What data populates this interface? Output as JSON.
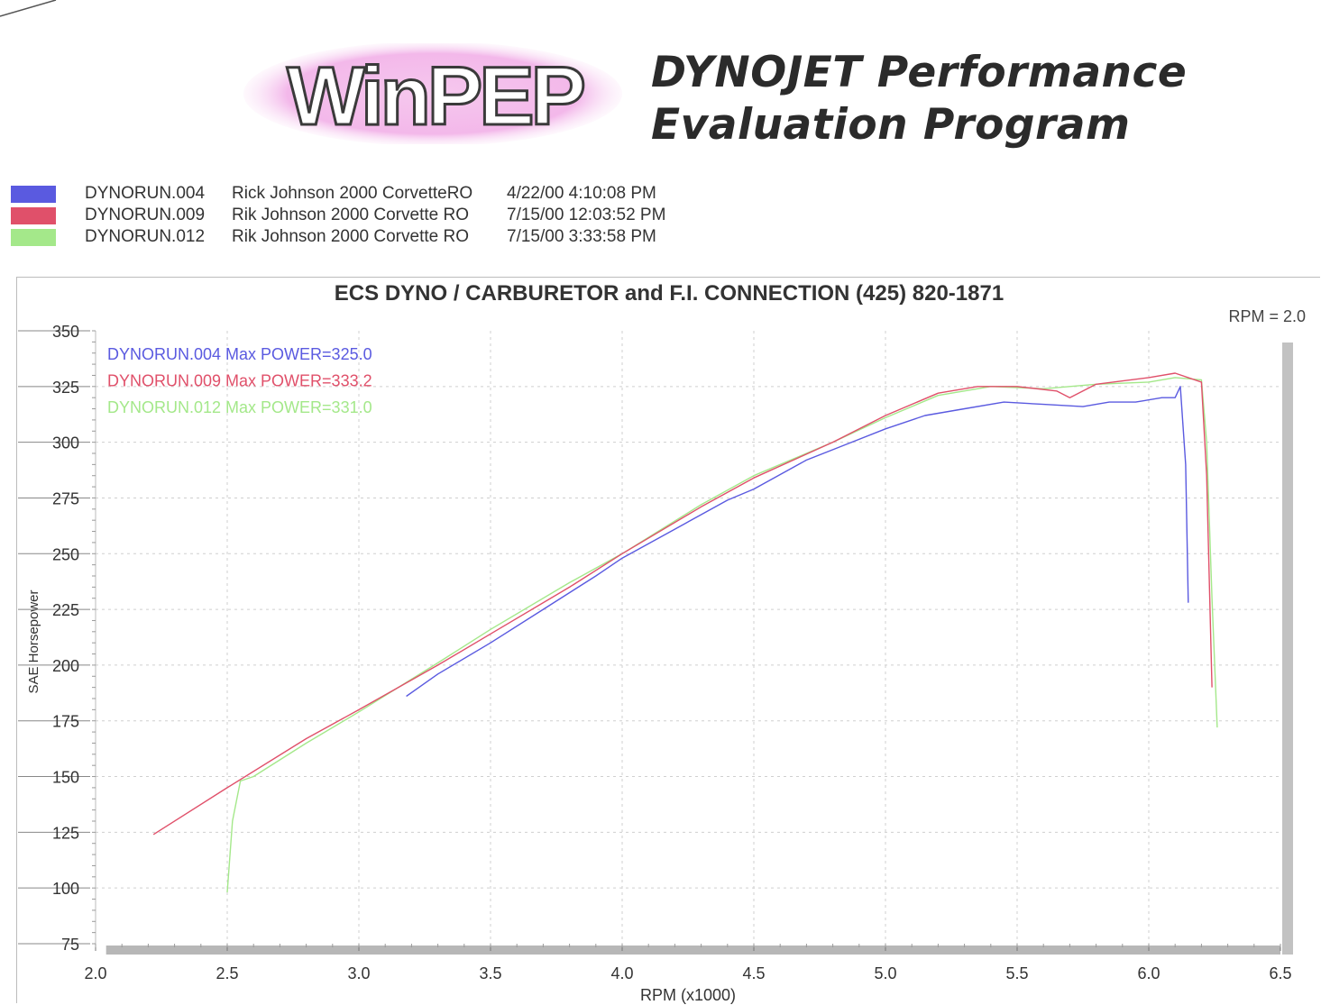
{
  "header": {
    "logo_text": "WinPEP",
    "program_title_line1": "DYNOJET Performance",
    "program_title_line2": "Evaluation Program"
  },
  "runs": [
    {
      "file": "DYNORUN.004",
      "description": "Rick Johnson 2000 CorvetteRO",
      "timestamp": "4/22/00 4:10:08 PM",
      "color": "#5a5ae0"
    },
    {
      "file": "DYNORUN.009",
      "description": "Rik Johnson 2000 Corvette  RO",
      "timestamp": "7/15/00 12:03:52 PM",
      "color": "#e0506a"
    },
    {
      "file": "DYNORUN.012",
      "description": "Rik Johnson 2000 Corvette  RO",
      "timestamp": "7/15/00 3:33:58 PM",
      "color": "#a4e88a"
    }
  ],
  "chart_data": {
    "type": "line",
    "title": "ECS DYNO / CARBURETOR and F.I. CONNECTION   (425) 820-1871",
    "corner_note": "RPM = 2.0",
    "xlabel": "RPM (x1000)",
    "ylabel": "SAE Horsepower",
    "xlim": [
      2.0,
      6.5
    ],
    "ylim": [
      75,
      350
    ],
    "x_ticks": [
      "2.0",
      "2.5",
      "3.0",
      "3.5",
      "4.0",
      "4.5",
      "5.0",
      "5.5",
      "6.0",
      "6.5"
    ],
    "y_ticks": [
      "75",
      "100",
      "125",
      "150",
      "175",
      "200",
      "225",
      "250",
      "275",
      "300",
      "325",
      "350"
    ],
    "grid": true,
    "legend_placement": "top-left",
    "series": [
      {
        "name": "DYNORUN.004",
        "label": "DYNORUN.004  Max POWER=325.0",
        "color": "#5a5ae0",
        "x": [
          3.18,
          3.3,
          3.5,
          3.7,
          3.9,
          4.0,
          4.2,
          4.4,
          4.5,
          4.7,
          4.85,
          5.0,
          5.15,
          5.3,
          5.45,
          5.6,
          5.75,
          5.85,
          5.95,
          6.05,
          6.1,
          6.12,
          6.14,
          6.15
        ],
        "y": [
          186,
          196,
          210,
          225,
          240,
          248,
          261,
          274,
          279,
          292,
          299,
          306,
          312,
          315,
          318,
          317,
          316,
          318,
          318,
          320,
          320,
          325,
          290,
          228
        ]
      },
      {
        "name": "DYNORUN.009",
        "label": "DYNORUN.009  Max POWER=333.2",
        "color": "#e0506a",
        "x": [
          2.22,
          2.5,
          2.8,
          3.0,
          3.3,
          3.5,
          3.8,
          4.0,
          4.3,
          4.5,
          4.8,
          5.0,
          5.2,
          5.35,
          5.5,
          5.65,
          5.7,
          5.8,
          6.0,
          6.1,
          6.2,
          6.22,
          6.24
        ],
        "y": [
          124,
          145,
          167,
          180,
          200,
          214,
          235,
          250,
          271,
          284,
          300,
          312,
          322,
          325,
          325,
          323,
          320,
          326,
          329,
          331,
          327,
          285,
          190
        ]
      },
      {
        "name": "DYNORUN.012",
        "label": "DYNORUN.012  Max POWER=331.0",
        "color": "#a4e88a",
        "x": [
          2.5,
          2.52,
          2.55,
          2.6,
          2.8,
          3.0,
          3.3,
          3.5,
          3.8,
          4.0,
          4.3,
          4.5,
          4.8,
          5.0,
          5.2,
          5.4,
          5.6,
          5.8,
          6.0,
          6.1,
          6.2,
          6.22,
          6.24,
          6.26
        ],
        "y": [
          98,
          130,
          148,
          150,
          165,
          179,
          201,
          216,
          237,
          250,
          272,
          285,
          300,
          311,
          321,
          325,
          324,
          326,
          327,
          329,
          328,
          300,
          230,
          172
        ]
      }
    ]
  }
}
